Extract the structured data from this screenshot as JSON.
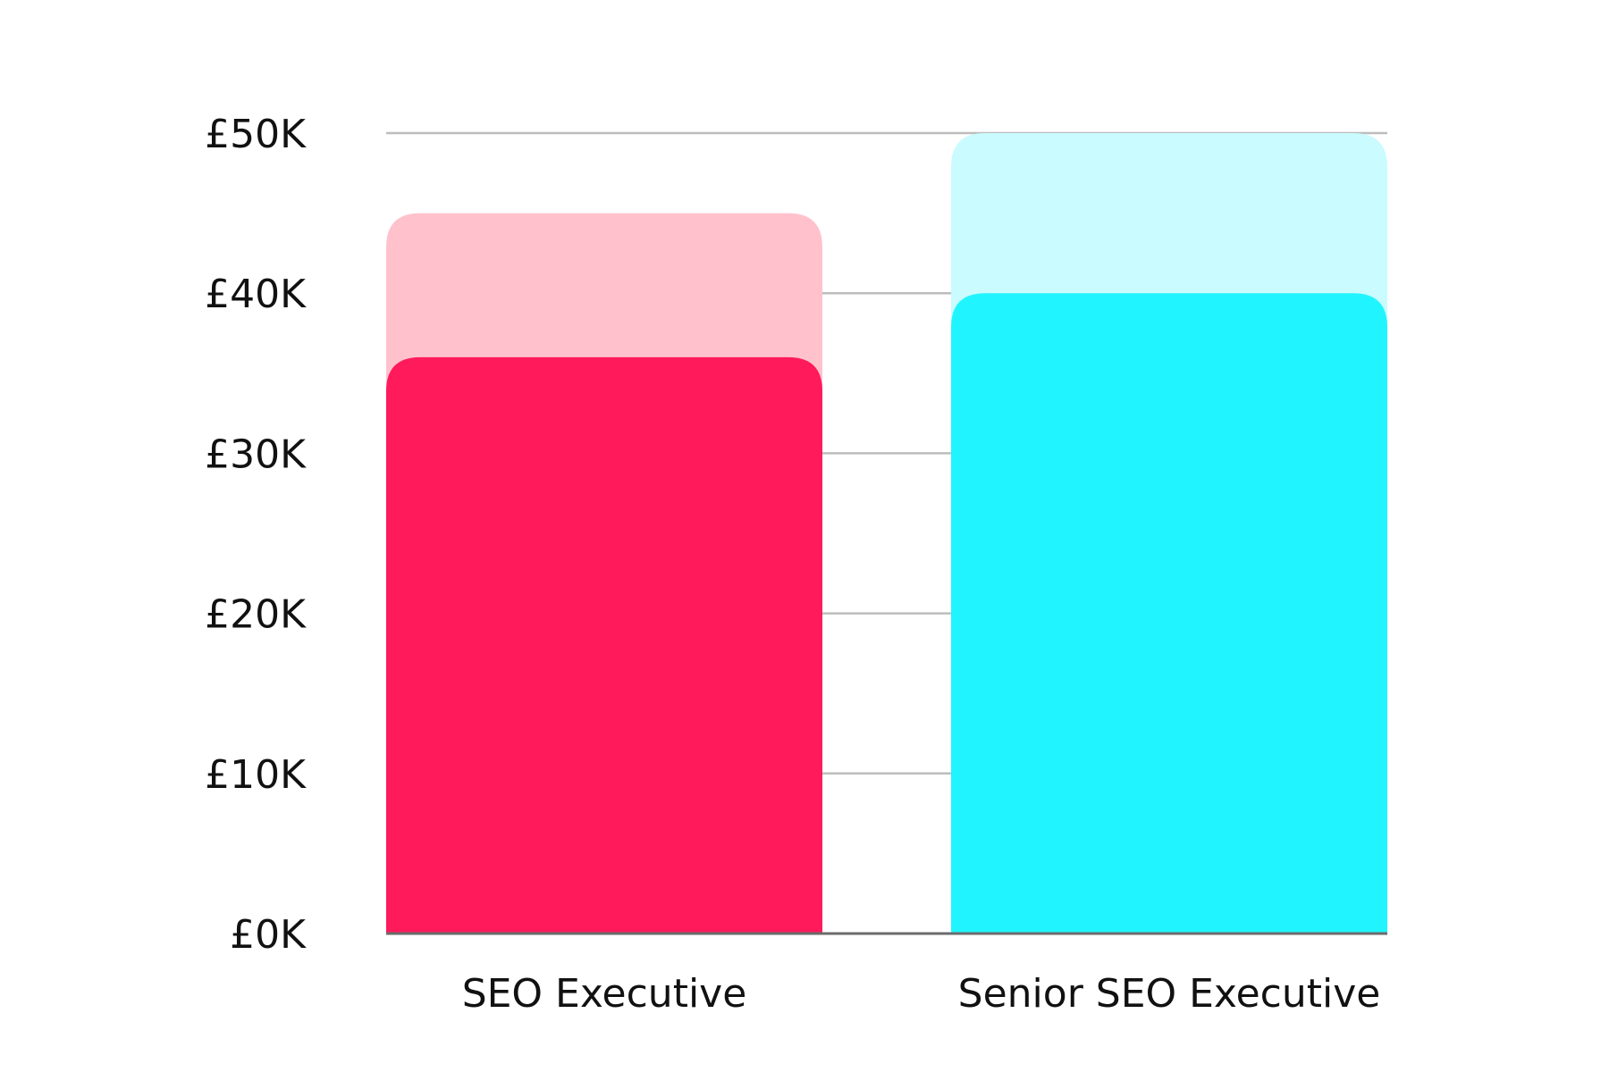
{
  "chart_data": {
    "type": "bar",
    "categories": [
      "SEO Executive",
      "Senior SEO Executive"
    ],
    "series": [
      {
        "values": [
          45000,
          50000
        ],
        "color": "#ffc2cd"
      },
      {
        "values": [
          36000,
          40000
        ],
        "colors": [
          "#ff1a5b",
          "#20f5ff"
        ]
      }
    ],
    "category_colors_light": [
      "#ffc2cd",
      "#c9fbff"
    ],
    "category_colors_dark": [
      "#ff1a5b",
      "#20f5ff"
    ],
    "ylim": [
      0,
      50000
    ],
    "yticks": [
      0,
      10000,
      20000,
      30000,
      40000,
      50000
    ],
    "ytick_labels": [
      "£0K",
      "£10K",
      "£20K",
      "£30K",
      "£40K",
      "£50K"
    ],
    "grid": true,
    "title": "",
    "xlabel": "",
    "ylabel": ""
  },
  "colors": {
    "grid": "#bdbdbd",
    "axis": "#6b6b6b",
    "text": "#111111",
    "background": "#ffffff"
  }
}
